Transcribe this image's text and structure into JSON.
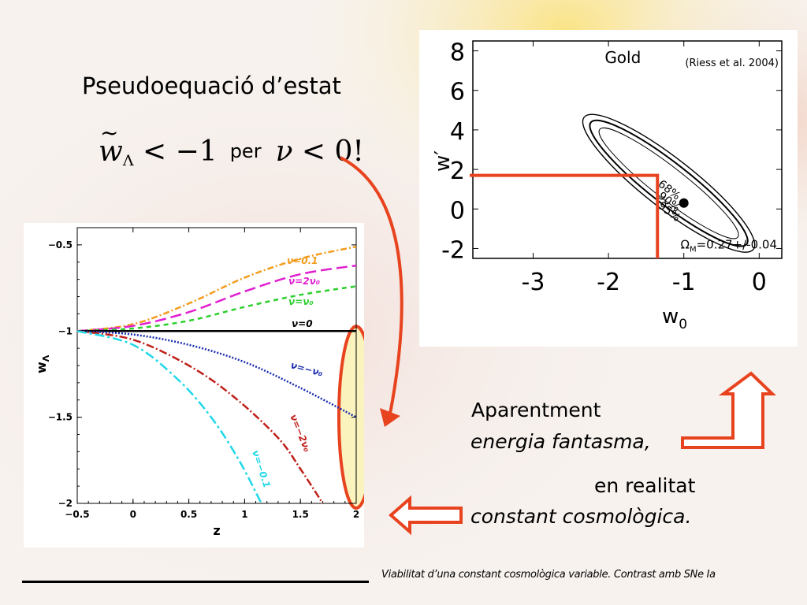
{
  "slide": {
    "title": "Pseudoequació d’estat",
    "equation": {
      "tilde": "~",
      "w": "w",
      "sub": "Λ",
      "rel": " < −1",
      "per": "per",
      "nu": "ν",
      "rel2": " < 0!"
    },
    "text_apparent_1": "Aparentment",
    "text_apparent_2": "energia fantasma,",
    "text_real_1": "en realitat",
    "text_real_2": "constant cosmològica.",
    "footer": "Viabilitat d’una constant cosmològica variable. Contrast amb SNe Ia"
  },
  "colors": {
    "arrow": "#e8431f",
    "highlight_fill": "#fbf3bd",
    "orange": "#f39c1e",
    "magenta": "#e020d0",
    "green": "#2ccf2c",
    "blue": "#1a2bb0",
    "red": "#c0201a",
    "cyan": "#20d8e8"
  },
  "chart_data": [
    {
      "type": "line",
      "xlabel": "z",
      "ylabel": "w_Λ",
      "ylabel_main": "w",
      "ylabel_sub": "Λ",
      "xlim": [
        -0.5,
        2
      ],
      "ylim": [
        -2,
        -0.4
      ],
      "xticks": [
        "−0.5",
        "0",
        "0.5",
        "1",
        "1.5",
        "2"
      ],
      "xtick_values": [
        -0.5,
        0,
        0.5,
        1,
        1.5,
        2
      ],
      "yticks": [
        "−0.5",
        "−1",
        "−1.5",
        "−2"
      ],
      "ytick_values": [
        -0.5,
        -1,
        -1.5,
        -2
      ],
      "series": [
        {
          "name": "ν=0.1",
          "color": "#f39c1e",
          "dash": "8,3,2,3",
          "x": [
            -0.5,
            0,
            0.5,
            1,
            1.5,
            2
          ],
          "y": [
            -1.0,
            -0.96,
            -0.84,
            -0.69,
            -0.58,
            -0.51
          ]
        },
        {
          "name": "ν=2ν₀",
          "color": "#e020d0",
          "dash": "14,6",
          "x": [
            -0.5,
            0,
            0.5,
            1,
            1.5,
            2
          ],
          "y": [
            -1.0,
            -0.97,
            -0.89,
            -0.77,
            -0.67,
            -0.62
          ]
        },
        {
          "name": "ν=ν₀",
          "color": "#2ccf2c",
          "dash": "6,5",
          "x": [
            -0.5,
            0,
            0.5,
            1,
            1.5,
            2
          ],
          "y": [
            -1.0,
            -0.985,
            -0.94,
            -0.86,
            -0.79,
            -0.74
          ]
        },
        {
          "name": "ν=0",
          "color": "#000000",
          "dash": "",
          "x": [
            -0.5,
            2
          ],
          "y": [
            -1.0,
            -1.0
          ]
        },
        {
          "name": "ν=−ν₀",
          "color": "#1a2bb0",
          "dash": "2,2",
          "x": [
            -0.5,
            0,
            0.5,
            1,
            1.5,
            2
          ],
          "y": [
            -1.0,
            -1.02,
            -1.08,
            -1.18,
            -1.33,
            -1.5
          ]
        },
        {
          "name": "ν=−2ν₀",
          "color": "#c0201a",
          "dash": "10,3,2,3",
          "x": [
            -0.5,
            0,
            0.5,
            0.9,
            1.3,
            1.5,
            1.7
          ],
          "y": [
            -1.0,
            -1.05,
            -1.2,
            -1.38,
            -1.62,
            -1.8,
            -2.0
          ]
        },
        {
          "name": "ν=−0.1",
          "color": "#20d8e8",
          "dash": "12,4,3,4",
          "x": [
            -0.5,
            0,
            0.4,
            0.7,
            0.95,
            1.15
          ],
          "y": [
            -1.0,
            -1.08,
            -1.28,
            -1.5,
            -1.75,
            -2.0
          ]
        }
      ],
      "highlight_region": {
        "x": 2,
        "y_range": [
          -1.0,
          -2.0
        ]
      }
    },
    {
      "type": "contour",
      "label_top_left": "Gold",
      "label_top_right": "(Riess et al. 2004)",
      "xlabel": "w0",
      "xlabel_main": "w",
      "xlabel_sub": "0",
      "ylabel": "w′",
      "ylabel_main": "w",
      "ylabel_mark": "′",
      "xlim": [
        -3.8,
        0.3
      ],
      "ylim": [
        -2.5,
        8.5
      ],
      "xticks": [
        "-3",
        "-2",
        "-1",
        "0"
      ],
      "xtick_values": [
        -3,
        -2,
        -1,
        0
      ],
      "yticks": [
        "8",
        "6",
        "4",
        "2",
        "0",
        "-2"
      ],
      "ytick_values": [
        8,
        6,
        4,
        2,
        0,
        -2
      ],
      "levels": [
        "68%",
        "90%",
        "95%"
      ],
      "best_fit": {
        "x": -1.0,
        "y": 0.3
      },
      "ellipse_center": {
        "x": -1.2,
        "y": 1.3
      },
      "ellipse_semi_axes": [
        [
          1.55,
          0.28
        ],
        [
          1.75,
          0.36
        ],
        [
          1.9,
          0.44
        ]
      ],
      "omega_label": "Ω",
      "omega_sub": "M",
      "omega_value": "=0.27+/-0.04",
      "reference_point": {
        "x": -1.35,
        "y": 1.7
      }
    }
  ]
}
